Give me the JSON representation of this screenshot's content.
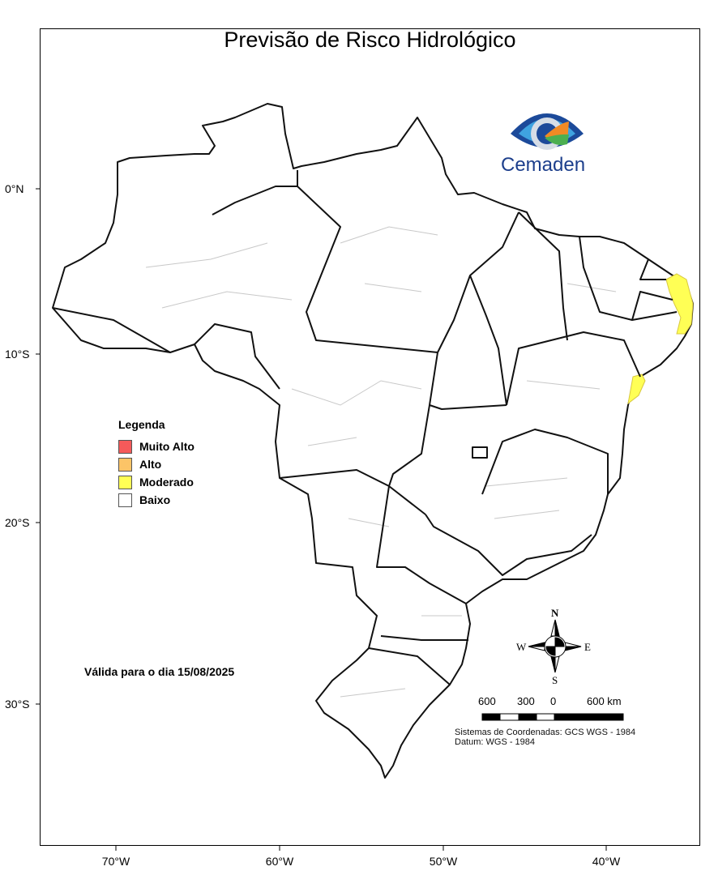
{
  "title": "Previsão de Risco Hidrológico",
  "logo": {
    "text": "Cemaden"
  },
  "axes": {
    "lat_ticks": [
      "0°N",
      "10°S",
      "20°S",
      "30°S"
    ],
    "lon_ticks": [
      "70°W",
      "60°W",
      "50°W",
      "40°W"
    ]
  },
  "legend": {
    "title": "Legenda",
    "items": [
      {
        "label": "Muito Alto",
        "color": "#f55a5a"
      },
      {
        "label": "Alto",
        "color": "#fcc467"
      },
      {
        "label": "Moderado",
        "color": "#ffff55"
      },
      {
        "label": "Baixo",
        "color": "#ffffff"
      }
    ]
  },
  "validity": "Válida para o dia 15/08/2025",
  "compass": {
    "n": "N",
    "s": "S",
    "e": "E",
    "w": "W"
  },
  "scale_bar": {
    "labels": [
      "600",
      "300",
      "0",
      "600 km"
    ]
  },
  "coordinate_system": "Sistemas de Coordenadas: GCS WGS - 1984",
  "datum": "Datum: WGS - 1984"
}
